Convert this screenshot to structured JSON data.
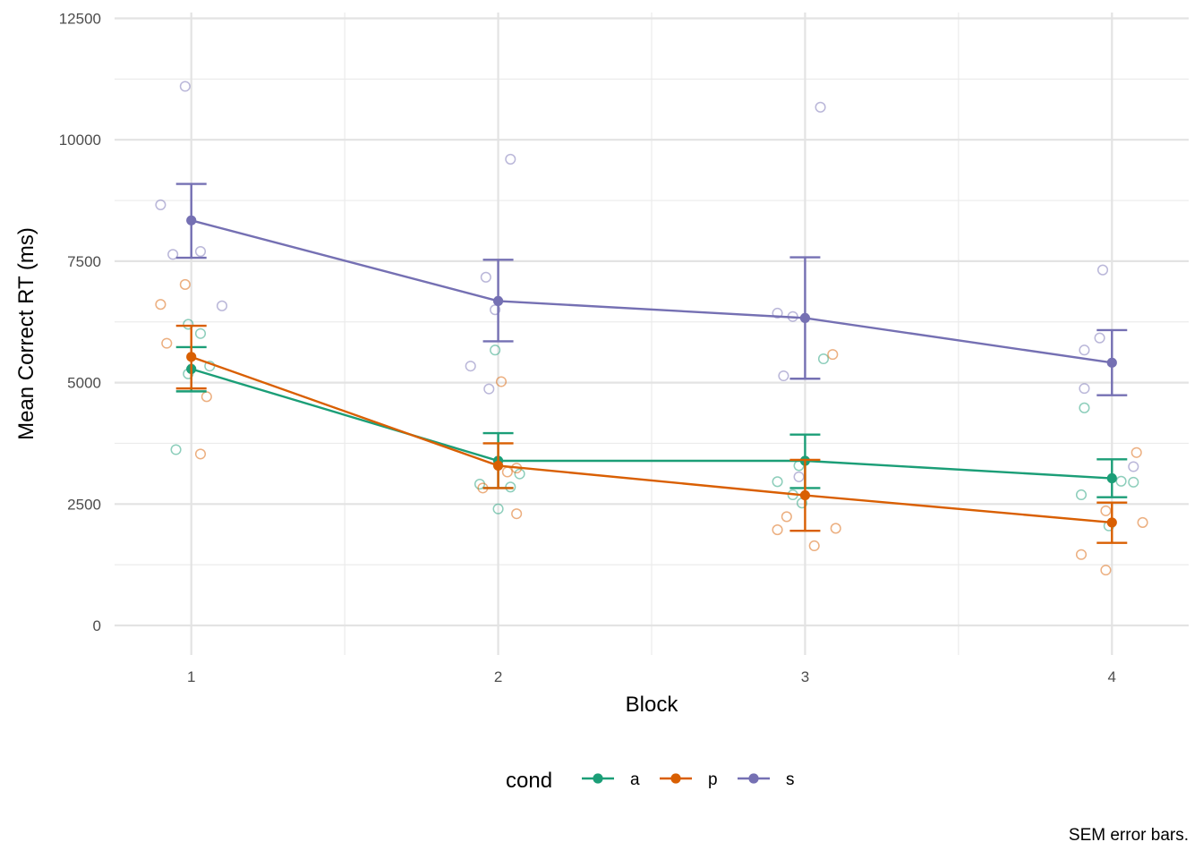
{
  "chart_data": {
    "type": "line",
    "xlabel": "Block",
    "ylabel": "Mean Correct RT (ms)",
    "caption": "SEM error bars.",
    "categories": [
      "1",
      "2",
      "3",
      "4"
    ],
    "x_ticks": [
      "1",
      "2",
      "3",
      "4"
    ],
    "y_ticks": [
      "0",
      "2500",
      "5000",
      "7500",
      "10000",
      "12500"
    ],
    "ylim": [
      -600,
      12500
    ],
    "xlim": [
      0.75,
      4.25
    ],
    "grid": true,
    "legend": {
      "title": "cond",
      "position": "bottom"
    },
    "error_bars": "SEM",
    "series": [
      {
        "name": "a",
        "color": "#1b9e77",
        "means": [
          5280,
          3390,
          3390,
          3030
        ],
        "sem_low": [
          4820,
          2830,
          2830,
          2640
        ],
        "sem_high": [
          5730,
          3960,
          3930,
          3420
        ],
        "points": [
          {
            "x": 0.99,
            "y": 6200
          },
          {
            "x": 1.03,
            "y": 6010
          },
          {
            "x": 1.06,
            "y": 5340
          },
          {
            "x": 0.99,
            "y": 5180
          },
          {
            "x": 0.95,
            "y": 3620
          },
          {
            "x": 1.99,
            "y": 5670
          },
          {
            "x": 1.94,
            "y": 2910
          },
          {
            "x": 2.04,
            "y": 2850
          },
          {
            "x": 2.07,
            "y": 3120
          },
          {
            "x": 2.0,
            "y": 2400
          },
          {
            "x": 2.98,
            "y": 3290
          },
          {
            "x": 2.91,
            "y": 2960
          },
          {
            "x": 2.96,
            "y": 2690
          },
          {
            "x": 2.99,
            "y": 2520
          },
          {
            "x": 3.06,
            "y": 5490
          },
          {
            "x": 3.9,
            "y": 2690
          },
          {
            "x": 3.91,
            "y": 4480
          },
          {
            "x": 4.03,
            "y": 2970
          },
          {
            "x": 4.07,
            "y": 2950
          },
          {
            "x": 3.99,
            "y": 2050
          }
        ]
      },
      {
        "name": "p",
        "color": "#d95f02",
        "means": [
          5530,
          3290,
          2680,
          2120
        ],
        "sem_low": [
          4880,
          2830,
          1950,
          1700
        ],
        "sem_high": [
          6170,
          3750,
          3410,
          2530
        ],
        "points": [
          {
            "x": 0.9,
            "y": 6610
          },
          {
            "x": 0.98,
            "y": 7020
          },
          {
            "x": 0.92,
            "y": 5810
          },
          {
            "x": 1.05,
            "y": 4710
          },
          {
            "x": 1.03,
            "y": 3530
          },
          {
            "x": 2.01,
            "y": 5020
          },
          {
            "x": 1.95,
            "y": 2830
          },
          {
            "x": 2.03,
            "y": 3160
          },
          {
            "x": 2.06,
            "y": 3240
          },
          {
            "x": 2.06,
            "y": 2300
          },
          {
            "x": 2.91,
            "y": 1970
          },
          {
            "x": 2.94,
            "y": 2240
          },
          {
            "x": 3.03,
            "y": 1640
          },
          {
            "x": 3.1,
            "y": 2000
          },
          {
            "x": 3.09,
            "y": 5580
          },
          {
            "x": 3.9,
            "y": 1460
          },
          {
            "x": 3.98,
            "y": 1140
          },
          {
            "x": 3.98,
            "y": 2360
          },
          {
            "x": 4.1,
            "y": 2120
          },
          {
            "x": 4.08,
            "y": 3560
          }
        ]
      },
      {
        "name": "s",
        "color": "#7570b3",
        "means": [
          8340,
          6680,
          6330,
          5410
        ],
        "sem_low": [
          7570,
          5850,
          5080,
          4740
        ],
        "sem_high": [
          9090,
          7530,
          7580,
          6080
        ],
        "points": [
          {
            "x": 0.98,
            "y": 11100
          },
          {
            "x": 0.9,
            "y": 8660
          },
          {
            "x": 0.94,
            "y": 7640
          },
          {
            "x": 1.03,
            "y": 7700
          },
          {
            "x": 1.1,
            "y": 6580
          },
          {
            "x": 2.04,
            "y": 9600
          },
          {
            "x": 1.96,
            "y": 7170
          },
          {
            "x": 1.99,
            "y": 6500
          },
          {
            "x": 1.91,
            "y": 5340
          },
          {
            "x": 1.97,
            "y": 4870
          },
          {
            "x": 3.05,
            "y": 10670
          },
          {
            "x": 2.91,
            "y": 6430
          },
          {
            "x": 2.96,
            "y": 6360
          },
          {
            "x": 2.93,
            "y": 5140
          },
          {
            "x": 2.98,
            "y": 3060
          },
          {
            "x": 3.97,
            "y": 7320
          },
          {
            "x": 3.91,
            "y": 5670
          },
          {
            "x": 3.96,
            "y": 5920
          },
          {
            "x": 3.91,
            "y": 4880
          },
          {
            "x": 4.07,
            "y": 3270
          }
        ]
      }
    ]
  }
}
